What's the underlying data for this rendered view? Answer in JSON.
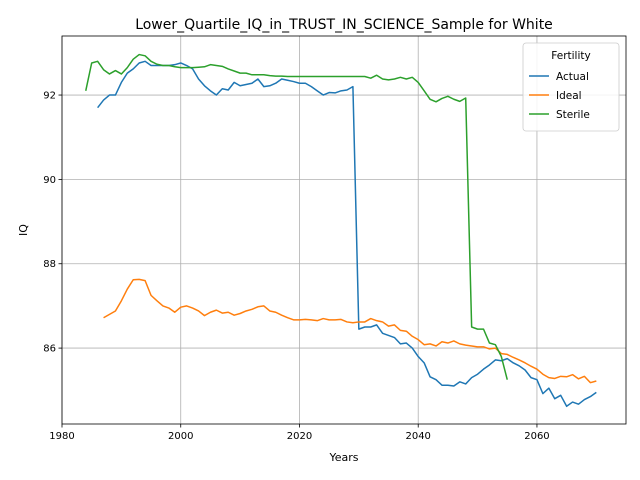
{
  "chart_data": {
    "type": "line",
    "title": "Lower_Quartile_IQ_in_TRUST_IN_SCIENCE_Sample for White",
    "xlabel": "Years",
    "ylabel": "IQ",
    "xlim": [
      1980,
      2075
    ],
    "ylim": [
      84.2,
      93.4
    ],
    "xticks": [
      1980,
      2000,
      2020,
      2040,
      2060
    ],
    "yticks": [
      86,
      88,
      90,
      92
    ],
    "grid": true,
    "legend": {
      "title": "Fertility",
      "placement": "top-right"
    },
    "series": [
      {
        "name": "Actual",
        "color": "#1f77b4",
        "x": [
          1986,
          1987,
          1988,
          1989,
          1990,
          1991,
          1992,
          1993,
          1994,
          1995,
          1996,
          1997,
          1998,
          1999,
          2000,
          2001,
          2002,
          2003,
          2004,
          2005,
          2006,
          2007,
          2008,
          2009,
          2010,
          2011,
          2012,
          2013,
          2014,
          2015,
          2016,
          2017,
          2018,
          2019,
          2020,
          2021,
          2022,
          2023,
          2024,
          2025,
          2026,
          2027,
          2028,
          2029,
          2030,
          2031,
          2032,
          2033,
          2034,
          2035,
          2036,
          2037,
          2038,
          2039,
          2040,
          2041,
          2042,
          2043,
          2044,
          2045,
          2046,
          2047,
          2048,
          2049,
          2050,
          2051,
          2052,
          2053,
          2054,
          2055,
          2056,
          2057,
          2058,
          2059,
          2060,
          2061,
          2062,
          2063,
          2064,
          2065,
          2066,
          2067,
          2068,
          2069,
          2070
        ],
        "y": [
          91.7,
          91.88,
          92.0,
          92.0,
          92.3,
          92.52,
          92.62,
          92.76,
          92.8,
          92.7,
          92.7,
          92.7,
          92.7,
          92.72,
          92.76,
          92.7,
          92.62,
          92.38,
          92.22,
          92.1,
          92.0,
          92.15,
          92.12,
          92.3,
          92.22,
          92.25,
          92.28,
          92.38,
          92.2,
          92.22,
          92.28,
          92.38,
          92.35,
          92.32,
          92.28,
          92.28,
          92.2,
          92.1,
          92.0,
          92.06,
          92.05,
          92.1,
          92.12,
          92.2,
          86.45,
          86.5,
          86.5,
          86.55,
          86.35,
          86.3,
          86.25,
          86.1,
          86.12,
          86.0,
          85.8,
          85.65,
          85.32,
          85.25,
          85.12,
          85.12,
          85.1,
          85.2,
          85.15,
          85.3,
          85.38,
          85.5,
          85.6,
          85.72,
          85.7,
          85.75,
          85.65,
          85.58,
          85.48,
          85.3,
          85.25,
          84.92,
          85.05,
          84.8,
          84.88,
          84.62,
          84.72,
          84.67,
          84.78,
          84.85,
          84.95
        ]
      },
      {
        "name": "Ideal",
        "color": "#ff7f0e",
        "x": [
          1987,
          1988,
          1989,
          1990,
          1991,
          1992,
          1993,
          1994,
          1995,
          1996,
          1997,
          1998,
          1999,
          2000,
          2001,
          2002,
          2003,
          2004,
          2005,
          2006,
          2007,
          2008,
          2009,
          2010,
          2011,
          2012,
          2013,
          2014,
          2015,
          2016,
          2017,
          2018,
          2019,
          2020,
          2021,
          2022,
          2023,
          2024,
          2025,
          2026,
          2027,
          2028,
          2029,
          2030,
          2031,
          2032,
          2033,
          2034,
          2035,
          2036,
          2037,
          2038,
          2039,
          2040,
          2041,
          2042,
          2043,
          2044,
          2045,
          2046,
          2047,
          2048,
          2049,
          2050,
          2051,
          2052,
          2053,
          2054,
          2055,
          2056,
          2057,
          2058,
          2059,
          2060,
          2061,
          2062,
          2063,
          2064,
          2065,
          2066,
          2067,
          2068,
          2069,
          2070
        ],
        "y": [
          86.72,
          86.8,
          86.88,
          87.12,
          87.4,
          87.62,
          87.63,
          87.6,
          87.25,
          87.12,
          87.0,
          86.95,
          86.85,
          86.97,
          87.0,
          86.95,
          86.88,
          86.77,
          86.85,
          86.9,
          86.83,
          86.85,
          86.78,
          86.82,
          86.88,
          86.92,
          86.98,
          87.0,
          86.88,
          86.85,
          86.78,
          86.72,
          86.67,
          86.67,
          86.68,
          86.67,
          86.65,
          86.7,
          86.67,
          86.67,
          86.68,
          86.62,
          86.6,
          86.62,
          86.62,
          86.7,
          86.65,
          86.62,
          86.52,
          86.55,
          86.42,
          86.4,
          86.28,
          86.2,
          86.08,
          86.1,
          86.05,
          86.15,
          86.12,
          86.17,
          86.1,
          86.07,
          86.05,
          86.03,
          86.03,
          85.98,
          86.0,
          85.87,
          85.85,
          85.78,
          85.72,
          85.65,
          85.57,
          85.5,
          85.38,
          85.3,
          85.28,
          85.33,
          85.32,
          85.37,
          85.27,
          85.33,
          85.18,
          85.22
        ]
      },
      {
        "name": "Sterile",
        "color": "#2ca02c",
        "x": [
          1984,
          1985,
          1986,
          1987,
          1988,
          1989,
          1990,
          1991,
          1992,
          1993,
          1994,
          1995,
          1996,
          1997,
          1998,
          1999,
          2000,
          2001,
          2002,
          2003,
          2004,
          2005,
          2006,
          2007,
          2008,
          2009,
          2010,
          2011,
          2012,
          2013,
          2014,
          2015,
          2016,
          2017,
          2018,
          2019,
          2020,
          2021,
          2022,
          2023,
          2024,
          2025,
          2026,
          2027,
          2028,
          2029,
          2030,
          2031,
          2032,
          2033,
          2034,
          2035,
          2036,
          2037,
          2038,
          2039,
          2040,
          2041,
          2042,
          2043,
          2044,
          2045,
          2046,
          2047,
          2048,
          2049,
          2050,
          2051,
          2052,
          2053,
          2054,
          2055
        ],
        "y": [
          92.1,
          92.76,
          92.8,
          92.6,
          92.5,
          92.58,
          92.5,
          92.65,
          92.85,
          92.96,
          92.93,
          92.8,
          92.73,
          92.7,
          92.7,
          92.67,
          92.65,
          92.65,
          92.65,
          92.66,
          92.67,
          92.72,
          92.7,
          92.68,
          92.62,
          92.57,
          92.52,
          92.52,
          92.48,
          92.48,
          92.48,
          92.46,
          92.45,
          92.45,
          92.44,
          92.44,
          92.44,
          92.44,
          92.44,
          92.44,
          92.44,
          92.44,
          92.44,
          92.44,
          92.44,
          92.44,
          92.44,
          92.44,
          92.4,
          92.47,
          92.38,
          92.36,
          92.38,
          92.42,
          92.38,
          92.42,
          92.3,
          92.1,
          91.9,
          91.84,
          91.92,
          91.97,
          91.9,
          91.85,
          91.93,
          86.5,
          86.45,
          86.45,
          86.12,
          86.08,
          85.8,
          85.25
        ]
      }
    ]
  }
}
